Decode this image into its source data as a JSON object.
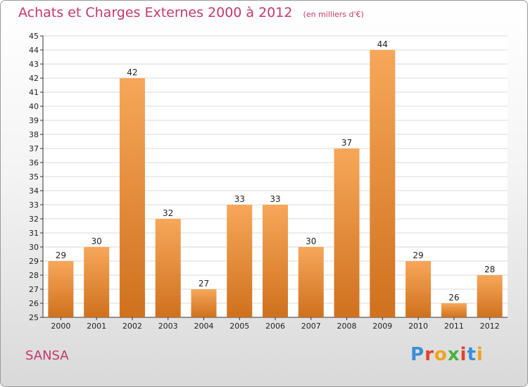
{
  "title": {
    "main": "Achats et Charges Externes 2000 à 2012",
    "unit": "(en milliers d'€)"
  },
  "location": "SANSA",
  "logo": {
    "text": "Proxiti",
    "letter_colors": [
      "#3a8fd6",
      "#e2432a",
      "#f1a31c",
      "#4caf3f",
      "#e2432a",
      "#3a8fd6",
      "#f1a31c"
    ]
  },
  "colors": {
    "bar_light": "#f7a75a",
    "bar_dark": "#cf711e",
    "title": "#c4386a",
    "grid": "#d8d8d8"
  },
  "chart_data": {
    "type": "bar",
    "categories": [
      "2000",
      "2001",
      "2002",
      "2003",
      "2004",
      "2005",
      "2006",
      "2007",
      "2008",
      "2009",
      "2010",
      "2011",
      "2012"
    ],
    "values": [
      29,
      30,
      42,
      32,
      27,
      33,
      33,
      30,
      37,
      44,
      29,
      26,
      28
    ],
    "ylim": [
      25,
      45
    ],
    "ytick_step": 1,
    "grid": true,
    "legend": false,
    "xlabel": "",
    "ylabel": ""
  }
}
